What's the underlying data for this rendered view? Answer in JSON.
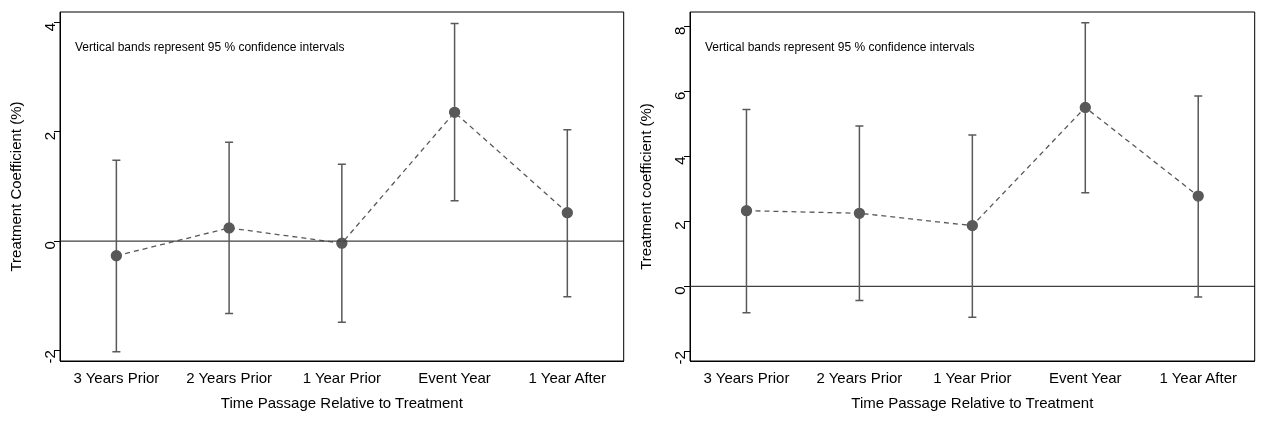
{
  "chart_data": [
    {
      "type": "line",
      "xlabel": "Time Passage Relative to Treatment",
      "ylabel": "Treatment Coefficient (%)",
      "categories": [
        "3 Years Prior",
        "2 Years Prior",
        "1 Year Prior",
        "Event Year",
        "1 Year After"
      ],
      "series": [
        {
          "color": "#595959",
          "values": [
            -0.27,
            0.24,
            -0.04,
            2.36,
            0.52
          ],
          "errors": [
            [
              -2.03,
              1.48
            ],
            [
              -1.33,
              1.81
            ],
            [
              -1.49,
              1.41
            ],
            [
              0.74,
              3.99
            ],
            [
              -1.02,
              2.04
            ]
          ]
        }
      ],
      "ylim": [
        -2.2,
        4.2
      ],
      "yticks": [
        -2,
        0,
        2,
        4
      ],
      "grid": false,
      "legend": false,
      "marker": "circle",
      "line_style": "dashed",
      "ref_lines": [
        {
          "axis": "y",
          "value": 0,
          "color": "#404040"
        }
      ],
      "annotations": [
        "Vertical bands represent 95 % confidence intervals"
      ]
    },
    {
      "type": "line",
      "xlabel": "Time Passage Relative to Treatment",
      "ylabel": "Treatment coefficient (%)",
      "categories": [
        "3 Years Prior",
        "2 Years Prior",
        "1 Year Prior",
        "Event Year",
        "1 Year After"
      ],
      "series": [
        {
          "color": "#595959",
          "values": [
            2.33,
            2.25,
            1.87,
            5.51,
            2.78
          ],
          "errors": [
            [
              -0.81,
              5.45
            ],
            [
              -0.44,
              4.94
            ],
            [
              -0.95,
              4.66
            ],
            [
              2.88,
              8.12
            ],
            [
              -0.33,
              5.86
            ]
          ]
        }
      ],
      "ylim": [
        -2.3,
        8.45
      ],
      "yticks": [
        -2,
        0,
        2,
        4,
        6,
        8
      ],
      "grid": false,
      "legend": false,
      "marker": "circle",
      "line_style": "dashed",
      "ref_lines": [
        {
          "axis": "y",
          "value": 0,
          "color": "#404040"
        }
      ],
      "annotations": [
        "Vertical bands represent 95 % confidence intervals"
      ]
    }
  ]
}
